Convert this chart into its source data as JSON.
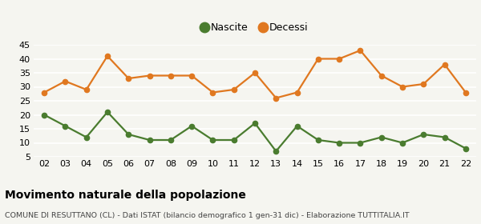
{
  "years": [
    "02",
    "03",
    "04",
    "05",
    "06",
    "07",
    "08",
    "09",
    "10",
    "11",
    "12",
    "13",
    "14",
    "15",
    "16",
    "17",
    "18",
    "19",
    "20",
    "21",
    "22"
  ],
  "nascite": [
    20,
    16,
    12,
    21,
    13,
    11,
    11,
    16,
    11,
    11,
    17,
    7,
    16,
    11,
    10,
    10,
    12,
    10,
    13,
    12,
    8
  ],
  "decessi": [
    28,
    32,
    29,
    41,
    33,
    34,
    34,
    34,
    28,
    29,
    35,
    26,
    28,
    40,
    40,
    43,
    34,
    30,
    31,
    38,
    28
  ],
  "nascite_color": "#4a7c2f",
  "decessi_color": "#e07820",
  "background_color": "#f5f5f0",
  "grid_color": "#ffffff",
  "ylim": [
    5,
    45
  ],
  "yticks": [
    5,
    10,
    15,
    20,
    25,
    30,
    35,
    40,
    45
  ],
  "title": "Movimento naturale della popolazione",
  "subtitle": "COMUNE DI RESUTTANO (CL) - Dati ISTAT (bilancio demografico 1 gen-31 dic) - Elaborazione TUTTITALIA.IT",
  "legend_nascite": "Nascite",
  "legend_decessi": "Decessi",
  "marker_size": 4.5,
  "line_width": 1.6,
  "tick_fontsize": 8,
  "title_fontsize": 10,
  "subtitle_fontsize": 6.8
}
